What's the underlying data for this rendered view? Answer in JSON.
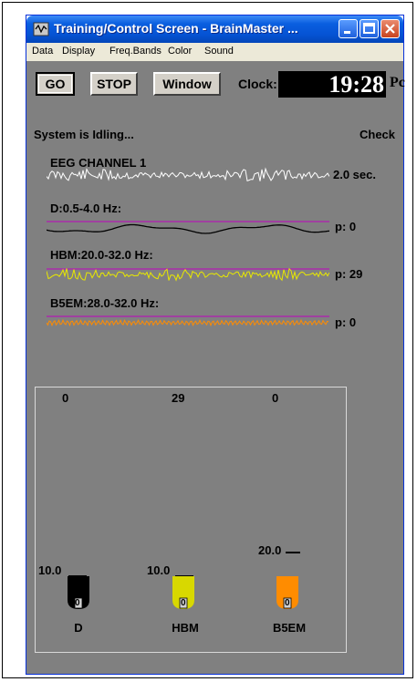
{
  "window": {
    "title": "Training/Control Screen - BrainMaster ...",
    "minimize_label": "",
    "maximize_label": "",
    "close_label": ""
  },
  "menu": [
    {
      "label": "Data"
    },
    {
      "label": "Display"
    },
    {
      "label": "Freq.Bands"
    },
    {
      "label": "Color"
    },
    {
      "label": "Sound"
    }
  ],
  "toolbar": {
    "go_label": "GO",
    "stop_label": "STOP",
    "window_label": "Window",
    "clock_label": "Clock:",
    "clock_value": "19:28",
    "clock_overflow": "Pc"
  },
  "status": {
    "text": "System is Idling...",
    "right_text": "Check"
  },
  "channels": {
    "eeg": {
      "label": "EEG CHANNEL 1",
      "time": "2.0 sec."
    },
    "d": {
      "label": "D:0.5-4.0 Hz:",
      "p": "p:  0",
      "color": "#000000"
    },
    "hbm": {
      "label": "HBM:20.0-32.0 Hz:",
      "p": "p:  29",
      "color": "#e8e800"
    },
    "b5em": {
      "label": "B5EM:28.0-32.0 Hz:",
      "p": "p:  0",
      "color": "#ff8c00"
    }
  },
  "threshold_color": "#c000c0",
  "bars": {
    "values": [
      "0",
      "29",
      "0"
    ],
    "items": [
      {
        "name": "D",
        "threshold": "10.0",
        "color": "#000000",
        "reading": "0",
        "level": 0
      },
      {
        "name": "HBM",
        "threshold": "10.0",
        "color": "#d8d800",
        "reading": "0",
        "level": 0
      },
      {
        "name": "B5EM",
        "threshold": "20.0",
        "color": "#ff8c00",
        "reading": "0",
        "level": 0
      }
    ]
  }
}
